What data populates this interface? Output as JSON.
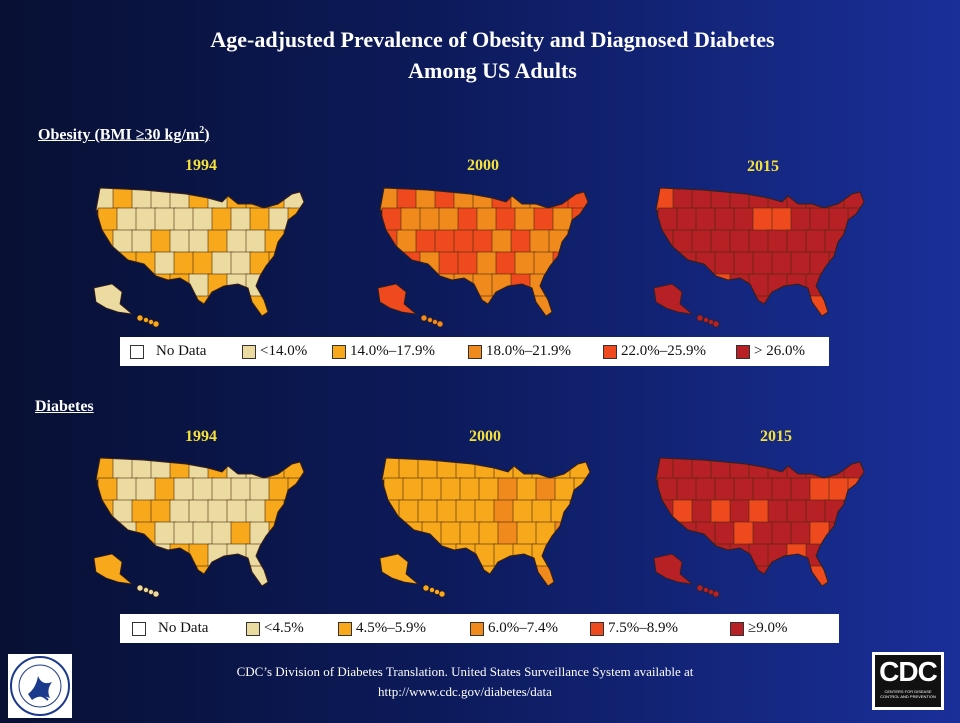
{
  "title": {
    "line1": "Age-adjusted Prevalence of  Obesity and Diagnosed Diabetes",
    "line2": "Among US Adults"
  },
  "obesity": {
    "heading_prefix": "Obesity (BMI  ≥30 kg/m",
    "heading_sup": "2",
    "heading_suffix": ")",
    "years": [
      "1994",
      "2000",
      "2015"
    ],
    "legend": [
      {
        "label": "No Data",
        "color": "#ffffff"
      },
      {
        "label": "<14.0%",
        "color": "#ecdba0"
      },
      {
        "label": "14.0%–17.9%",
        "color": "#f7a81b"
      },
      {
        "label": "18.0%–21.9%",
        "color": "#f08a1c"
      },
      {
        "label": "22.0%–25.9%",
        "color": "#ef4a1e"
      },
      {
        "label": "> 26.0%",
        "color": "#b72025"
      }
    ]
  },
  "diabetes": {
    "heading": "Diabetes",
    "years": [
      "1994",
      "2000",
      "2015"
    ],
    "legend": [
      {
        "label": "No Data",
        "color": "#ffffff"
      },
      {
        "label": "<4.5%",
        "color": "#ecdba0"
      },
      {
        "label": "4.5%–5.9%",
        "color": "#f7a81b"
      },
      {
        "label": "6.0%–7.4%",
        "color": "#f08a1c"
      },
      {
        "label": "7.5%–8.9%",
        "color": "#ef4a1e"
      },
      {
        "label": "≥9.0%",
        "color": "#b72025"
      }
    ]
  },
  "map_fills": {
    "obesity_1994": {
      "base": "#f7a81b",
      "accent": "#ecdba0",
      "dominant": "mixed"
    },
    "obesity_2000": {
      "base": "#f08a1c",
      "accent": "#ef4a1e",
      "dominant": "mixed"
    },
    "obesity_2015": {
      "base": "#b72025",
      "accent": "#ef4a1e",
      "dominant": "base"
    },
    "diabetes_1994": {
      "base": "#ecdba0",
      "accent": "#f7a81b",
      "dominant": "mixed"
    },
    "diabetes_2000": {
      "base": "#f7a81b",
      "accent": "#f08a1c",
      "dominant": "base"
    },
    "diabetes_2015": {
      "base": "#b72025",
      "accent": "#ef4a1e",
      "dominant": "base"
    }
  },
  "footer": {
    "line1": "CDC’s Division of Diabetes Translation. United States Surveillance System available at",
    "line2": "http://www.cdc.gov/diabetes/data"
  },
  "logos": {
    "hhs_icon": "hhs-eagle-icon",
    "cdc_text": "CDC",
    "cdc_subtext": "CENTERS FOR DISEASE CONTROL AND PREVENTION"
  }
}
